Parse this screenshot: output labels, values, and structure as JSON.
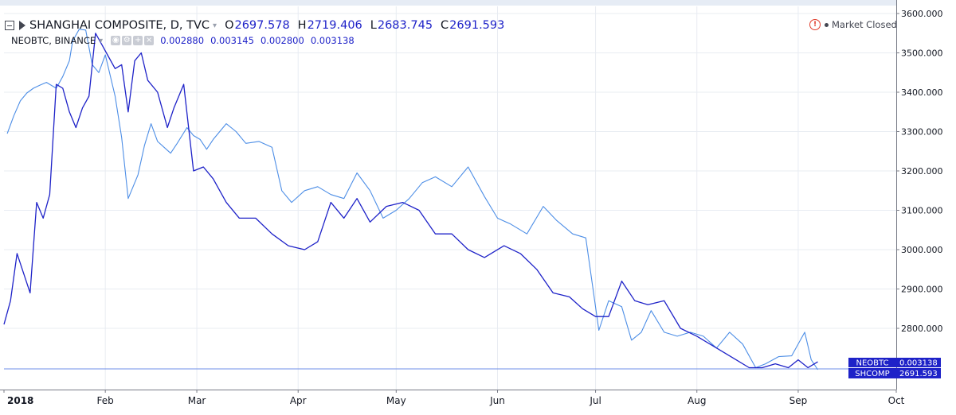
{
  "header": {
    "main_symbol": "SHANGHAI COMPOSITE, D, TVC",
    "ohlc": [
      {
        "k": "O",
        "v": "2697.578"
      },
      {
        "k": "H",
        "v": "2719.406"
      },
      {
        "k": "L",
        "v": "2683.745"
      },
      {
        "k": "C",
        "v": "2691.593"
      }
    ],
    "second_symbol": "NEOBTC, BINANCE",
    "second_values": [
      "0.002880",
      "0.003145",
      "0.002800",
      "0.003138"
    ],
    "icons": [
      "collapse-icon",
      "flag-icon",
      "chevron-down-icon",
      "visibility-icon",
      "settings-icon",
      "add-icon",
      "close-icon",
      "alert-icon"
    ],
    "market_status": "Market Closed"
  },
  "chart_data": {
    "type": "line",
    "title": "SHANGHAI COMPOSITE, D, TVC",
    "xlabel": "",
    "ylabel": "",
    "ylim": [
      2680,
      3620
    ],
    "y_ticks": [
      "3600.000",
      "3500.000",
      "3400.000",
      "3300.000",
      "3200.000",
      "3100.000",
      "3000.000",
      "2900.000",
      "2800.000"
    ],
    "x_ticks": [
      "2018",
      "Feb",
      "Mar",
      "Apr",
      "May",
      "Jun",
      "Jul",
      "Aug",
      "Sep",
      "Oct"
    ],
    "x_domain": [
      "2018-01-01",
      "2018-10-01"
    ],
    "grid": true,
    "colors": {
      "shcomp": "#1e22c8",
      "neobtc": "#4d8ee6",
      "grid": "#e8ecf2"
    },
    "price_labels": [
      {
        "name": "NEOBTC",
        "value": "0.003138"
      },
      {
        "name": "SHCOMP",
        "value": "2691.593"
      }
    ],
    "series": [
      {
        "name": "SHANGHAI COMPOSITE",
        "x": [
          "2018-01-02",
          "2018-01-04",
          "2018-01-06",
          "2018-01-08",
          "2018-01-10",
          "2018-01-12",
          "2018-01-14",
          "2018-01-15",
          "2018-01-17",
          "2018-01-19",
          "2018-01-21",
          "2018-01-22",
          "2018-01-24",
          "2018-01-26",
          "2018-01-28",
          "2018-01-30",
          "2018-02-01",
          "2018-02-04",
          "2018-02-06",
          "2018-02-08",
          "2018-02-09",
          "2018-02-11",
          "2018-02-13",
          "2018-02-15",
          "2018-02-17",
          "2018-02-19",
          "2018-02-21",
          "2018-02-23",
          "2018-02-26",
          "2018-02-28",
          "2018-03-02",
          "2018-03-04",
          "2018-03-06",
          "2018-03-08",
          "2018-03-10",
          "2018-03-13",
          "2018-03-16",
          "2018-03-20",
          "2018-03-24",
          "2018-03-27",
          "2018-03-30",
          "2018-04-03",
          "2018-04-07",
          "2018-04-11",
          "2018-04-15",
          "2018-04-19",
          "2018-04-23",
          "2018-04-27",
          "2018-05-01",
          "2018-05-05",
          "2018-05-09",
          "2018-05-13",
          "2018-05-18",
          "2018-05-23",
          "2018-05-28",
          "2018-06-01",
          "2018-06-05",
          "2018-06-10",
          "2018-06-15",
          "2018-06-19",
          "2018-06-24",
          "2018-06-28",
          "2018-07-02",
          "2018-07-05",
          "2018-07-09",
          "2018-07-12",
          "2018-07-15",
          "2018-07-18",
          "2018-07-22",
          "2018-07-26",
          "2018-07-30",
          "2018-08-03",
          "2018-08-07",
          "2018-08-11",
          "2018-08-15",
          "2018-08-19",
          "2018-08-22",
          "2018-08-26",
          "2018-08-30",
          "2018-09-03",
          "2018-09-05",
          "2018-09-07"
        ],
        "values": [
          3295,
          3340,
          3378,
          3398,
          3410,
          3418,
          3425,
          3420,
          3410,
          3440,
          3480,
          3530,
          3560,
          3558,
          3470,
          3450,
          3495,
          3390,
          3285,
          3130,
          3150,
          3190,
          3265,
          3320,
          3275,
          3260,
          3245,
          3270,
          3310,
          3290,
          3280,
          3255,
          3280,
          3300,
          3320,
          3300,
          3270,
          3275,
          3260,
          3150,
          3120,
          3150,
          3160,
          3140,
          3130,
          3195,
          3150,
          3080,
          3100,
          3130,
          3170,
          3185,
          3160,
          3210,
          3135,
          3080,
          3065,
          3040,
          3110,
          3075,
          3040,
          3030,
          2795,
          2870,
          2855,
          2770,
          2790,
          2845,
          2790,
          2780,
          2790,
          2780,
          2750,
          2790,
          2760,
          2700,
          2710,
          2728,
          2730,
          2790,
          2720,
          2695
        ]
      },
      {
        "name": "NEOBTC",
        "x": [
          "2018-01-01",
          "2018-01-03",
          "2018-01-05",
          "2018-01-07",
          "2018-01-09",
          "2018-01-11",
          "2018-01-13",
          "2018-01-15",
          "2018-01-17",
          "2018-01-19",
          "2018-01-21",
          "2018-01-23",
          "2018-01-25",
          "2018-01-27",
          "2018-01-29",
          "2018-01-31",
          "2018-02-02",
          "2018-02-04",
          "2018-02-06",
          "2018-02-08",
          "2018-02-10",
          "2018-02-12",
          "2018-02-14",
          "2018-02-17",
          "2018-02-20",
          "2018-02-22",
          "2018-02-25",
          "2018-02-28",
          "2018-03-03",
          "2018-03-06",
          "2018-03-10",
          "2018-03-14",
          "2018-03-19",
          "2018-03-24",
          "2018-03-29",
          "2018-04-03",
          "2018-04-07",
          "2018-04-11",
          "2018-04-15",
          "2018-04-19",
          "2018-04-23",
          "2018-04-28",
          "2018-05-03",
          "2018-05-08",
          "2018-05-13",
          "2018-05-18",
          "2018-05-23",
          "2018-05-28",
          "2018-06-03",
          "2018-06-08",
          "2018-06-13",
          "2018-06-18",
          "2018-06-23",
          "2018-06-27",
          "2018-07-01",
          "2018-07-05",
          "2018-07-09",
          "2018-07-13",
          "2018-07-17",
          "2018-07-22",
          "2018-07-27",
          "2018-08-01",
          "2018-08-05",
          "2018-08-09",
          "2018-08-13",
          "2018-08-17",
          "2018-08-21",
          "2018-08-25",
          "2018-08-29",
          "2018-09-01",
          "2018-09-04",
          "2018-09-07"
        ],
        "values": [
          2810,
          2870,
          2990,
          2940,
          2890,
          3120,
          3080,
          3140,
          3420,
          3410,
          3350,
          3310,
          3360,
          3390,
          3550,
          3520,
          3490,
          3460,
          3470,
          3350,
          3480,
          3500,
          3430,
          3400,
          3310,
          3360,
          3420,
          3200,
          3210,
          3180,
          3120,
          3080,
          3080,
          3040,
          3010,
          3000,
          3020,
          3120,
          3080,
          3130,
          3070,
          3110,
          3120,
          3100,
          3040,
          3040,
          3000,
          2980,
          3010,
          2990,
          2950,
          2890,
          2880,
          2850,
          2830,
          2830,
          2920,
          2870,
          2860,
          2870,
          2800,
          2780,
          2760,
          2740,
          2720,
          2700,
          2700,
          2710,
          2700,
          2720,
          2700,
          2715
        ]
      }
    ]
  }
}
